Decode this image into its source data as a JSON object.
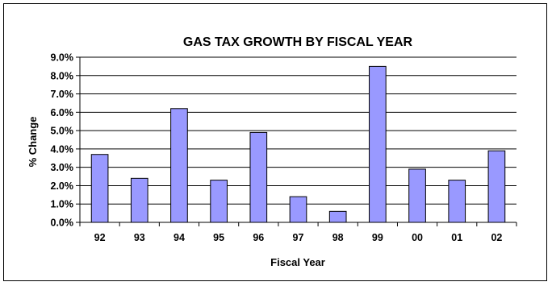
{
  "chart_data": {
    "type": "bar",
    "title": "GAS TAX GROWTH BY FISCAL YEAR",
    "xlabel": "Fiscal Year",
    "ylabel": "% Change",
    "categories": [
      "92",
      "93",
      "94",
      "95",
      "96",
      "97",
      "98",
      "99",
      "00",
      "01",
      "02"
    ],
    "values": [
      3.7,
      2.4,
      6.2,
      2.3,
      4.9,
      1.4,
      0.6,
      8.5,
      2.9,
      2.3,
      3.9
    ],
    "ylim": [
      0,
      9
    ],
    "y_ticks": [
      "0.0%",
      "1.0%",
      "2.0%",
      "3.0%",
      "4.0%",
      "5.0%",
      "6.0%",
      "7.0%",
      "8.0%",
      "9.0%"
    ],
    "y_tick_values": [
      0,
      1,
      2,
      3,
      4,
      5,
      6,
      7,
      8,
      9
    ],
    "grid": true,
    "legend": "none",
    "colors": {
      "bar_fill": "#9999ff",
      "bar_stroke": "#000000",
      "grid": "#000000",
      "axis": "#000000"
    }
  }
}
